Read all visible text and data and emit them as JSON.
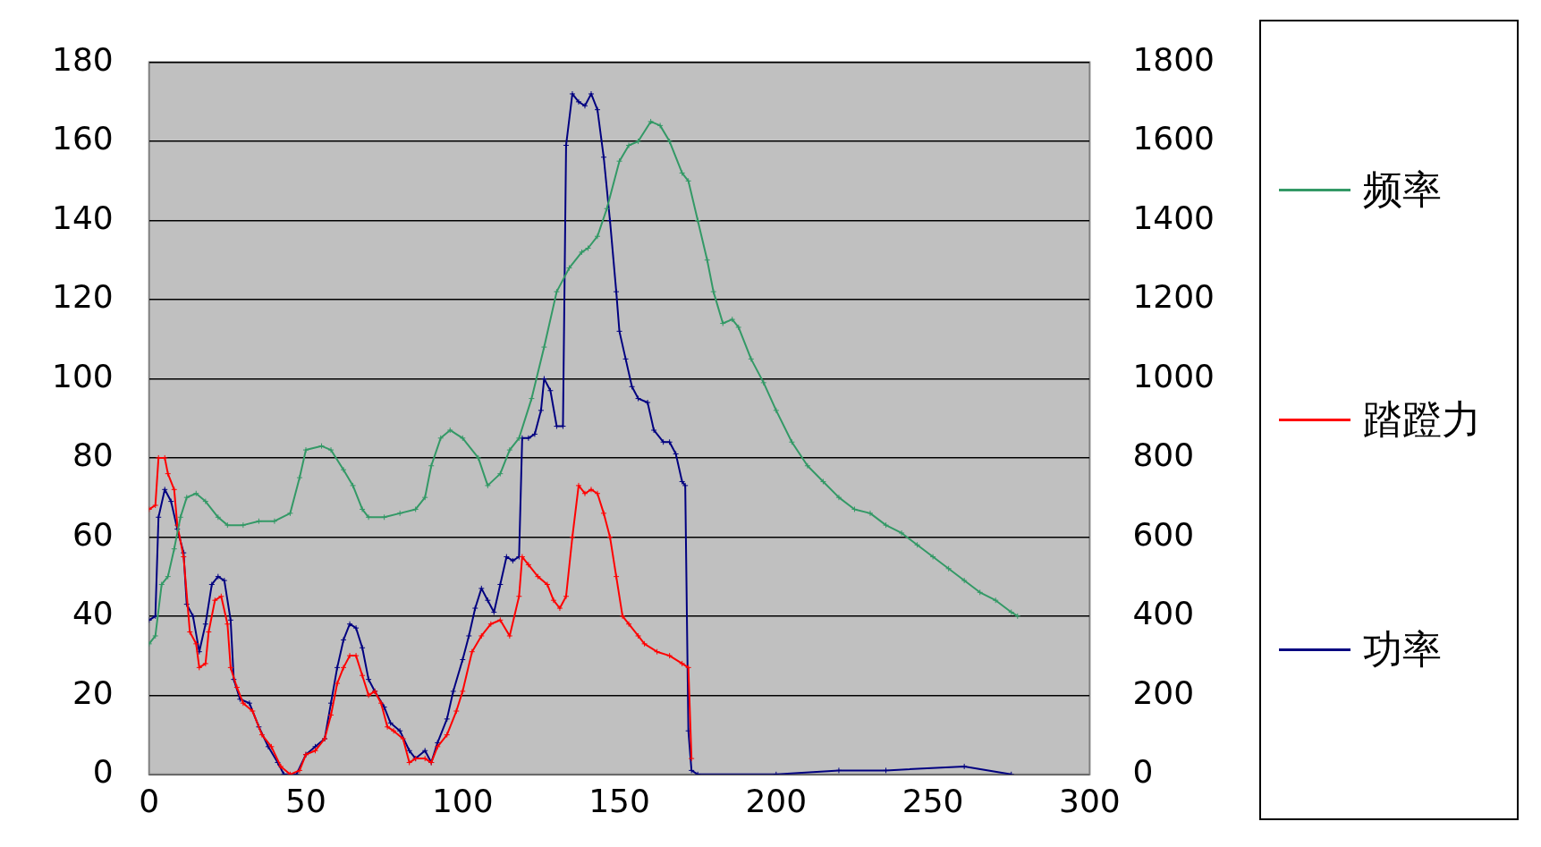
{
  "chart_data": {
    "type": "line",
    "xlim": [
      0,
      300
    ],
    "xticks": [
      0,
      50,
      100,
      150,
      200,
      250,
      300
    ],
    "ylim": [
      0,
      180
    ],
    "yticks": [
      0,
      20,
      40,
      60,
      80,
      100,
      120,
      140,
      160,
      180
    ],
    "y2lim": [
      0,
      1800
    ],
    "y2ticks": [
      0,
      200,
      400,
      600,
      800,
      1000,
      1200,
      1400,
      1600,
      1800
    ],
    "grid": "y",
    "legend": "right",
    "marker": "cross",
    "line_style": "solid",
    "series": [
      {
        "name": "频率",
        "color": "#339966",
        "x": [
          0,
          2,
          4,
          6,
          8,
          10,
          12,
          15,
          18,
          22,
          25,
          30,
          35,
          40,
          45,
          48,
          50,
          55,
          58,
          62,
          65,
          68,
          70,
          75,
          80,
          85,
          88,
          90,
          93,
          96,
          100,
          105,
          108,
          112,
          115,
          118,
          122,
          126,
          130,
          134,
          138,
          140,
          143,
          146,
          150,
          153,
          156,
          160,
          163,
          166,
          170,
          172,
          175,
          178,
          180,
          183,
          186,
          188,
          192,
          196,
          200,
          205,
          210,
          215,
          220,
          225,
          230,
          235,
          240,
          245,
          250,
          255,
          260,
          265,
          270,
          275,
          277
        ],
        "values": [
          33,
          35,
          48,
          50,
          57,
          65,
          70,
          71,
          69,
          65,
          63,
          63,
          64,
          64,
          66,
          75,
          82,
          83,
          82,
          77,
          73,
          67,
          65,
          65,
          66,
          67,
          70,
          78,
          85,
          87,
          85,
          80,
          73,
          76,
          82,
          85,
          95,
          108,
          122,
          128,
          132,
          133,
          136,
          143,
          155,
          159,
          160,
          165,
          164,
          160,
          152,
          150,
          140,
          130,
          122,
          114,
          115,
          113,
          105,
          99,
          92,
          84,
          78,
          74,
          70,
          67,
          66,
          63,
          61,
          58,
          55,
          52,
          49,
          46,
          44,
          41,
          40
        ]
      },
      {
        "name": "踏蹬力",
        "color": "#ff0000",
        "x": [
          0,
          2,
          3,
          5,
          6,
          8,
          9,
          11,
          13,
          15,
          16,
          18,
          19,
          21,
          23,
          25,
          26,
          28,
          30,
          33,
          36,
          39,
          42,
          45,
          48,
          50,
          53,
          56,
          58,
          60,
          62,
          64,
          66,
          68,
          70,
          72,
          74,
          76,
          78,
          81,
          83,
          85,
          88,
          90,
          92,
          95,
          98,
          100,
          103,
          106,
          109,
          112,
          115,
          118,
          119,
          121,
          124,
          127,
          129,
          131,
          133,
          135,
          137,
          139,
          141,
          143,
          145,
          147,
          149,
          151,
          153,
          156,
          158,
          162,
          166,
          170,
          172,
          173
        ],
        "values": [
          67,
          68,
          80,
          80,
          76,
          72,
          63,
          55,
          36,
          33,
          27,
          28,
          36,
          44,
          45,
          38,
          27,
          22,
          18,
          16,
          10,
          7,
          2,
          0,
          1,
          5,
          6,
          9,
          15,
          23,
          27,
          30,
          30,
          25,
          20,
          21,
          18,
          12,
          11,
          9,
          3,
          4,
          4,
          3,
          7,
          10,
          16,
          21,
          31,
          35,
          38,
          39,
          35,
          45,
          55,
          53,
          50,
          48,
          44,
          42,
          45,
          60,
          73,
          71,
          72,
          71,
          66,
          60,
          50,
          40,
          38,
          35,
          33,
          31,
          30,
          28,
          27,
          4
        ]
      },
      {
        "name": "功率",
        "color": "#000080",
        "axis": "y2",
        "x": [
          0,
          2,
          3,
          5,
          7,
          9,
          11,
          12,
          14,
          16,
          18,
          20,
          22,
          24,
          26,
          27,
          29,
          32,
          35,
          38,
          41,
          43,
          47,
          50,
          53,
          56,
          58,
          60,
          62,
          64,
          66,
          68,
          70,
          72,
          75,
          77,
          80,
          83,
          85,
          88,
          90,
          92,
          95,
          97,
          100,
          102,
          104,
          106,
          108,
          110,
          112,
          114,
          116,
          118,
          119,
          121,
          123,
          125,
          126,
          128,
          130,
          132,
          133,
          135,
          137,
          139,
          141,
          143,
          145,
          147,
          149,
          150,
          152,
          154,
          156,
          159,
          161,
          164,
          166,
          168,
          170,
          171,
          172,
          173,
          175,
          200,
          220,
          235,
          260,
          275
        ],
        "values": [
          390,
          400,
          650,
          720,
          690,
          620,
          560,
          430,
          400,
          310,
          380,
          480,
          500,
          490,
          390,
          240,
          190,
          180,
          120,
          70,
          30,
          0,
          0,
          50,
          70,
          90,
          180,
          270,
          340,
          380,
          370,
          320,
          240,
          210,
          170,
          130,
          110,
          60,
          40,
          60,
          30,
          80,
          140,
          210,
          290,
          350,
          420,
          470,
          440,
          410,
          480,
          550,
          540,
          550,
          850,
          850,
          860,
          920,
          1000,
          970,
          880,
          880,
          1590,
          1720,
          1700,
          1690,
          1720,
          1680,
          1560,
          1400,
          1220,
          1120,
          1050,
          980,
          950,
          940,
          870,
          840,
          840,
          810,
          740,
          730,
          110,
          10,
          0,
          0,
          10,
          10,
          20,
          0
        ]
      }
    ]
  }
}
